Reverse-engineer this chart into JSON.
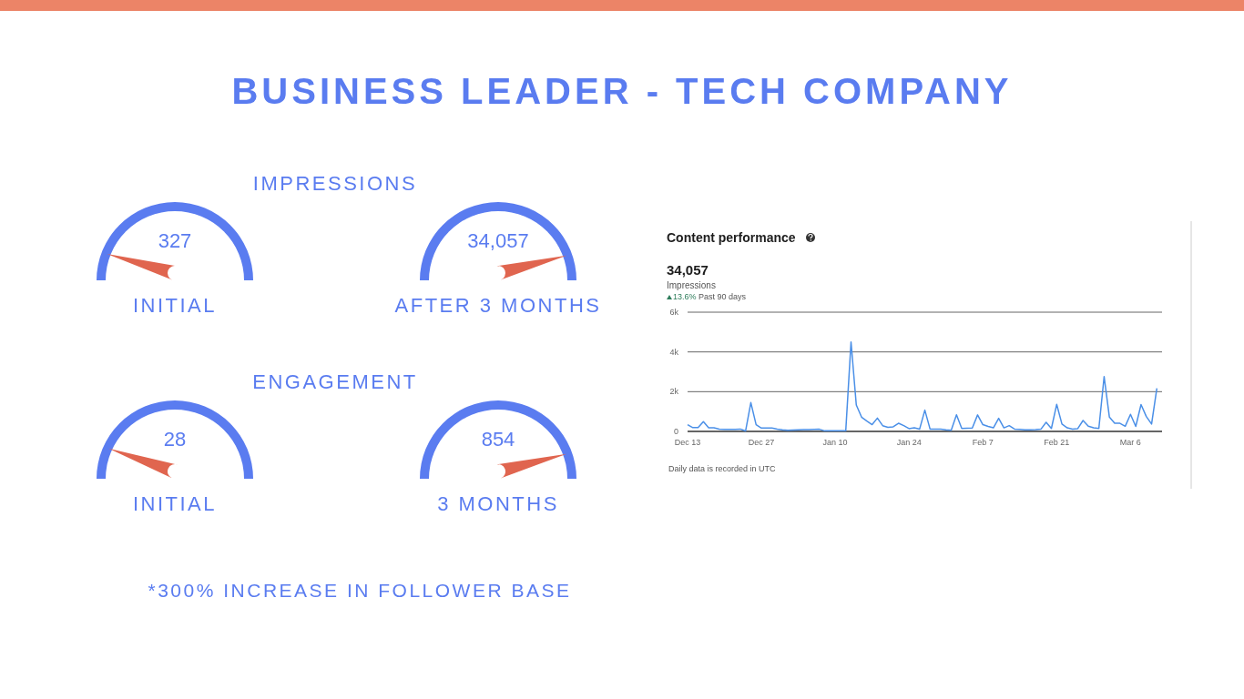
{
  "chart_data": [
    {
      "type": "other",
      "title": "BUSINESS LEADER - TECH COMPANY",
      "annotations": [
        "*300% INCREASE IN FOLLOWER BASE"
      ]
    },
    {
      "type": "other",
      "title": "IMPRESSIONS",
      "categories": [
        "INITIAL",
        "AFTER 3 MONTHS"
      ],
      "values": [
        327,
        34057
      ],
      "value_labels": [
        "327",
        "34,057"
      ]
    },
    {
      "type": "other",
      "title": "ENGAGEMENT",
      "categories": [
        "INITIAL",
        "3 MONTHS"
      ],
      "values": [
        28,
        854
      ],
      "value_labels": [
        "28",
        "854"
      ]
    },
    {
      "type": "line",
      "title": "Content performance",
      "annotations": [
        "34,057",
        "Impressions",
        "13.6%",
        "Past 90 days",
        "Daily data is recorded in UTC"
      ],
      "categories": [
        "Dec 13",
        null,
        null,
        null,
        null,
        null,
        null,
        null,
        null,
        null,
        null,
        null,
        null,
        null,
        "Dec 27",
        null,
        null,
        null,
        null,
        null,
        null,
        null,
        null,
        null,
        null,
        null,
        null,
        null,
        "Jan 10",
        null,
        null,
        null,
        null,
        null,
        null,
        null,
        null,
        null,
        null,
        null,
        null,
        null,
        "Jan 24",
        null,
        null,
        null,
        null,
        null,
        null,
        null,
        null,
        null,
        null,
        null,
        null,
        null,
        "Feb 7",
        null,
        null,
        null,
        null,
        null,
        null,
        null,
        null,
        null,
        null,
        null,
        null,
        null,
        "Feb 21",
        null,
        null,
        null,
        null,
        null,
        null,
        null,
        null,
        null,
        null,
        null,
        null,
        null,
        "Mar 6",
        null,
        null,
        null,
        null,
        null
      ],
      "series": [
        {
          "color": "#4a8fe7",
          "values": [
            340,
            190,
            190,
            490,
            180,
            180,
            110,
            100,
            100,
            100,
            120,
            20,
            1450,
            340,
            170,
            170,
            170,
            110,
            80,
            60,
            70,
            80,
            90,
            90,
            100,
            110,
            30,
            30,
            30,
            30,
            30,
            4500,
            1330,
            720,
            520,
            340,
            670,
            290,
            210,
            230,
            410,
            290,
            140,
            180,
            110,
            1070,
            110,
            110,
            110,
            80,
            60,
            840,
            150,
            160,
            170,
            830,
            340,
            250,
            180,
            660,
            180,
            290,
            120,
            100,
            80,
            80,
            90,
            110,
            460,
            150,
            1360,
            370,
            180,
            110,
            140,
            550,
            260,
            180,
            150,
            2760,
            720,
            410,
            410,
            260,
            860,
            250,
            1350,
            750,
            370,
            2170
          ]
        }
      ],
      "ylim": [
        0,
        6000
      ],
      "yticks": [
        0,
        {
          "value": 2000,
          "label": "2k"
        },
        {
          "value": 4000,
          "label": "4k"
        },
        {
          "value": 6000,
          "label": "6k"
        }
      ],
      "grid": "y"
    }
  ]
}
